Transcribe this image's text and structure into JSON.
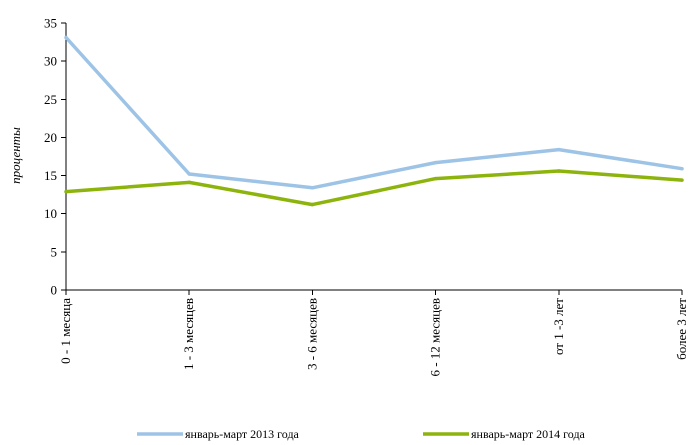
{
  "chart_data": {
    "type": "line",
    "title": "",
    "xlabel": "",
    "ylabel": "проценты",
    "ylim": [
      0,
      35
    ],
    "yticks": [
      0,
      5,
      10,
      15,
      20,
      25,
      30,
      35
    ],
    "grid": false,
    "legend_position": "bottom",
    "categories": [
      "0 - 1 месяца",
      "1 - 3 месяцев",
      "3 - 6 месяцев",
      "6 - 12 месяцев",
      "от 1 -3 лет",
      "более 3 лет"
    ],
    "series": [
      {
        "name": "январь-март 2013 года",
        "color": "#9dc3e6",
        "values": [
          33.1,
          15.2,
          13.4,
          16.7,
          18.4,
          15.9
        ]
      },
      {
        "name": "январь-март 2014 года",
        "color": "#8db40c",
        "values": [
          12.9,
          14.1,
          11.2,
          14.6,
          15.6,
          14.4
        ]
      }
    ]
  }
}
